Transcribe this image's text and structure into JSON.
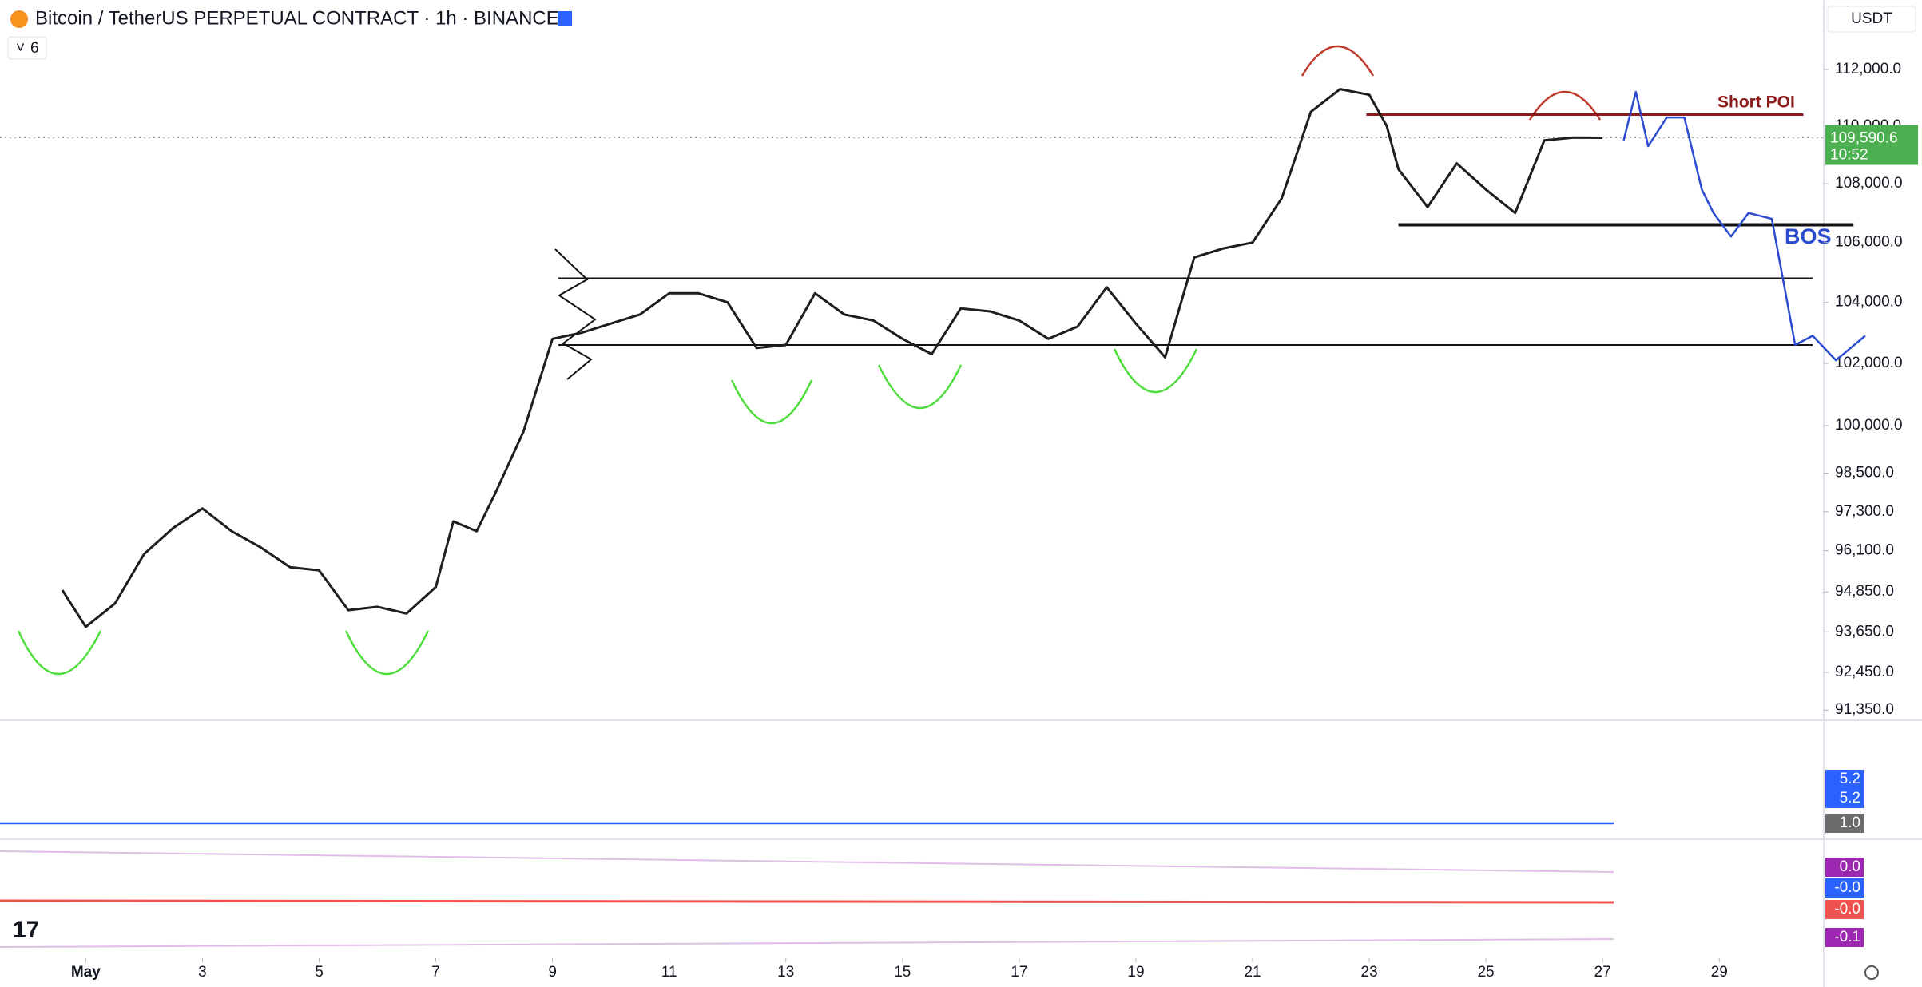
{
  "header": {
    "symbol": "Bitcoin / TetherUS PERPETUAL CONTRACT · 1h · BINANCE",
    "indicator_count": "6",
    "currency": "USDT"
  },
  "chart_data": {
    "type": "line",
    "log_scale": true,
    "grid": false,
    "color": "#1e1e1e",
    "xlim": [
      -0.47,
      30.79
    ],
    "xticks": [
      {
        "value": 1,
        "label": "May"
      },
      3,
      5,
      7,
      9,
      11,
      13,
      15,
      17,
      19,
      21,
      23,
      25,
      27,
      29
    ],
    "ylim": [
      91100,
      114500
    ],
    "yticks": [
      {
        "value": 112000,
        "label": "112,000.0"
      },
      {
        "value": 110000,
        "label": "110,000.0"
      },
      {
        "value": 108000,
        "label": "108,000.0"
      },
      {
        "value": 106000,
        "label": "106,000.0"
      },
      {
        "value": 104000,
        "label": "104,000.0"
      },
      {
        "value": 102000,
        "label": "102,000.0"
      },
      {
        "value": 100000,
        "label": "100,000.0"
      },
      {
        "value": 98500,
        "label": "98,500.0"
      },
      {
        "value": 97300,
        "label": "97,300.0"
      },
      {
        "value": 96100,
        "label": "96,100.0"
      },
      {
        "value": 94850,
        "label": "94,850.0"
      },
      {
        "value": 93650,
        "label": "93,650.0"
      },
      {
        "value": 92450,
        "label": "92,450.0"
      },
      {
        "value": 91350,
        "label": "91,350.0"
      }
    ],
    "x": [
      0.6,
      1.0,
      1.5,
      2.0,
      2.5,
      3.0,
      3.5,
      4.0,
      4.5,
      5.0,
      5.5,
      6.0,
      6.5,
      7.0,
      7.3,
      7.7,
      8.0,
      8.5,
      9.0,
      9.5,
      10.0,
      10.5,
      11.0,
      11.5,
      12.0,
      12.5,
      13.0,
      13.5,
      14.0,
      14.5,
      15.0,
      15.5,
      16.0,
      16.5,
      17.0,
      17.5,
      18.0,
      18.5,
      19.0,
      19.5,
      20.0,
      20.5,
      21.0,
      21.5,
      22.0,
      22.5,
      23.0,
      23.3,
      23.5,
      24.0,
      24.5,
      25.0,
      25.5,
      26.0,
      26.5,
      27.0
    ],
    "values": [
      94900,
      93800,
      94500,
      96000,
      96800,
      97400,
      96700,
      96200,
      95600,
      95500,
      94300,
      94400,
      94200,
      95000,
      97000,
      96700,
      97800,
      99800,
      102800,
      103000,
      103300,
      103600,
      104300,
      104300,
      104000,
      102500,
      102600,
      104300,
      103600,
      103400,
      102800,
      102300,
      103800,
      103700,
      103400,
      102800,
      103200,
      104500,
      103300,
      102200,
      105500,
      105800,
      106000,
      107500,
      110500,
      111300,
      111100,
      110000,
      108500,
      107200,
      108700,
      107800,
      107000,
      109500,
      109600,
      109590.6
    ],
    "last_price": {
      "value": 109590.6,
      "label": "109,590.6"
    },
    "countdown": "10:52",
    "levels": [
      {
        "value": 110400,
        "from": 22.95,
        "to": 30.44,
        "color": "#8b1a1a",
        "width": 3
      },
      {
        "value": 106600,
        "from": 23.5,
        "to": 31.3,
        "color": "#111111",
        "width": 4
      },
      {
        "value": 104800,
        "from": 9.1,
        "to": 30.6,
        "color": "#111111",
        "width": 2
      },
      {
        "value": 102600,
        "from": 9.1,
        "to": 30.6,
        "color": "#111111",
        "width": 2
      }
    ],
    "projection": {
      "color": "#2a4bd0",
      "x": [
        27.36,
        27.57,
        27.78,
        28.1,
        28.4,
        28.7,
        28.9,
        29.2,
        29.5,
        29.9,
        30.3,
        30.6,
        31.0,
        31.5
      ],
      "values": [
        109500,
        111200,
        109300,
        110300,
        110300,
        107800,
        107000,
        106200,
        107000,
        106800,
        102600,
        102900,
        102100,
        102900
      ]
    },
    "annotations": [
      "Short POI",
      "BOS"
    ],
    "indicator_badges": [
      {
        "label": "5.2",
        "color": "#2962ff"
      },
      {
        "label": "5.2",
        "color": "#2962ff"
      },
      {
        "label": "1.0",
        "color": "#6b6b6b"
      },
      {
        "label": "0.0",
        "color": "#9c27b0"
      },
      {
        "label": "-0.0",
        "color": "#2962ff"
      },
      {
        "label": "-0.0",
        "color": "#ef5350"
      },
      {
        "label": "-0.1",
        "color": "#9c27b0"
      }
    ]
  }
}
